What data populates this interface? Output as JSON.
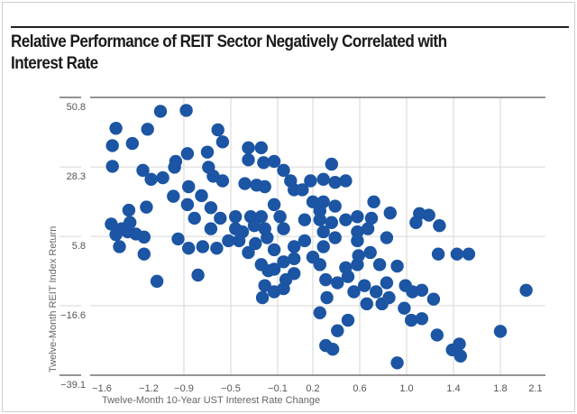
{
  "chart_data": {
    "type": "scatter",
    "title": "Relative Performance of REIT Sector Negatively Correlated with Interest Rate",
    "xlabel": "Twelve-Month 10-Year UST Interest Rate Change",
    "ylabel": "Twelve-Month REIT Index Return",
    "xticks": [
      -1.6,
      -1.2,
      -0.9,
      -0.5,
      -0.1,
      0.2,
      0.6,
      1.0,
      1.4,
      1.8,
      2.1
    ],
    "xtick_labels": [
      "−1.6",
      "−1.2",
      "−0.9",
      "−0.5",
      "−0.1",
      "0.2",
      "0.6",
      "1.0",
      "1.4",
      "1.8",
      "2.1"
    ],
    "yticks": [
      50.8,
      28.3,
      5.8,
      -16.6,
      -39.1
    ],
    "ytick_labels": [
      "50.8",
      "28.3",
      "5.8",
      "−16.6",
      "−39.1"
    ],
    "xlim": [
      -1.8,
      2.25
    ],
    "ylim": [
      -39.1,
      50.8
    ],
    "grid": true,
    "marker_color": "#1b55a3",
    "points": [
      [
        -1.1,
        46.3
      ],
      [
        -0.88,
        46.6
      ],
      [
        -1.48,
        40.8
      ],
      [
        -1.21,
        40.5
      ],
      [
        -1.51,
        35.2
      ],
      [
        -1.34,
        35.9
      ],
      [
        -1.51,
        28.5
      ],
      [
        -1.25,
        27.2
      ],
      [
        -1.18,
        24.3
      ],
      [
        -1.08,
        24.8
      ],
      [
        -0.98,
        28.2
      ],
      [
        -0.97,
        30.1
      ],
      [
        -0.87,
        32.6
      ],
      [
        -0.86,
        21.9
      ],
      [
        -0.99,
        18.8
      ],
      [
        -0.87,
        16.1
      ],
      [
        -0.75,
        19.0
      ],
      [
        -0.7,
        33.1
      ],
      [
        -0.69,
        28.2
      ],
      [
        -0.65,
        25.3
      ],
      [
        -0.57,
        23.8
      ],
      [
        -0.61,
        40.3
      ],
      [
        -0.57,
        36.4
      ],
      [
        -1.37,
        14.3
      ],
      [
        -1.22,
        15.3
      ],
      [
        -1.52,
        9.8
      ],
      [
        -1.43,
        8.3
      ],
      [
        -1.36,
        10.3
      ],
      [
        -1.48,
        6.4
      ],
      [
        -1.38,
        7.3
      ],
      [
        -1.31,
        6.6
      ],
      [
        -1.24,
        5.6
      ],
      [
        -1.45,
        2.5
      ],
      [
        -1.24,
        0.1
      ],
      [
        -1.13,
        -8.7
      ],
      [
        -0.95,
        5.0
      ],
      [
        -0.86,
        2.0
      ],
      [
        -0.78,
        -6.7
      ],
      [
        -0.81,
        11.7
      ],
      [
        -0.67,
        15.1
      ],
      [
        -0.67,
        8.3
      ],
      [
        -0.74,
        2.5
      ],
      [
        -0.62,
        2.0
      ],
      [
        -0.59,
        11.7
      ],
      [
        -0.35,
        34.5
      ],
      [
        -0.24,
        34.5
      ],
      [
        -0.35,
        30.6
      ],
      [
        -0.22,
        29.7
      ],
      [
        -0.13,
        30.1
      ],
      [
        -0.05,
        27.2
      ],
      [
        0.01,
        23.8
      ],
      [
        0.04,
        20.9
      ],
      [
        0.11,
        20.9
      ],
      [
        0.18,
        23.8
      ],
      [
        0.29,
        24.3
      ],
      [
        0.36,
        29.2
      ],
      [
        0.39,
        23.3
      ],
      [
        0.48,
        23.8
      ],
      [
        -0.38,
        22.9
      ],
      [
        -0.28,
        22.4
      ],
      [
        -0.21,
        21.9
      ],
      [
        -0.13,
        16.1
      ],
      [
        -0.46,
        12.2
      ],
      [
        -0.33,
        12.2
      ],
      [
        -0.24,
        12.2
      ],
      [
        -0.46,
        8.3
      ],
      [
        -0.4,
        7.3
      ],
      [
        -0.3,
        9.3
      ],
      [
        -0.21,
        8.3
      ],
      [
        -0.43,
        4.4
      ],
      [
        -0.35,
        0.6
      ],
      [
        -0.29,
        3.5
      ],
      [
        -0.19,
        5.4
      ],
      [
        -0.08,
        12.2
      ],
      [
        -0.05,
        8.3
      ],
      [
        -0.13,
        1.5
      ],
      [
        -0.24,
        -3.3
      ],
      [
        -0.13,
        -4.8
      ],
      [
        -0.05,
        -2.4
      ],
      [
        0.04,
        -6.2
      ],
      [
        -0.03,
        -8.2
      ],
      [
        -0.21,
        -10.1
      ],
      [
        -0.23,
        -14.0
      ],
      [
        -0.13,
        -12.1
      ],
      [
        -0.05,
        -11.1
      ],
      [
        0.04,
        2.5
      ],
      [
        0.13,
        4.4
      ],
      [
        0.2,
        17.0
      ],
      [
        0.13,
        11.2
      ],
      [
        0.29,
        17.0
      ],
      [
        0.39,
        15.6
      ],
      [
        0.26,
        11.2
      ],
      [
        0.36,
        10.3
      ],
      [
        0.29,
        7.3
      ],
      [
        0.39,
        5.4
      ],
      [
        0.29,
        2.5
      ],
      [
        0.2,
        -0.9
      ],
      [
        0.26,
        -3.3
      ],
      [
        0.48,
        11.2
      ],
      [
        0.58,
        12.2
      ],
      [
        0.72,
        17.0
      ],
      [
        0.7,
        11.7
      ],
      [
        0.86,
        13.4
      ],
      [
        0.58,
        7.3
      ],
      [
        0.67,
        8.3
      ],
      [
        0.58,
        4.4
      ],
      [
        0.83,
        5.4
      ],
      [
        0.69,
        0.6
      ],
      [
        0.59,
        -0.4
      ],
      [
        0.48,
        -4.3
      ],
      [
        0.58,
        -3.3
      ],
      [
        0.77,
        -3.3
      ],
      [
        0.92,
        -3.8
      ],
      [
        0.31,
        -8.2
      ],
      [
        0.41,
        -9.2
      ],
      [
        0.5,
        -7.2
      ],
      [
        0.32,
        -14.0
      ],
      [
        0.55,
        -12.1
      ],
      [
        0.64,
        -10.1
      ],
      [
        0.66,
        -16.0
      ],
      [
        0.74,
        -12.1
      ],
      [
        0.79,
        -16.0
      ],
      [
        0.85,
        -14.0
      ],
      [
        0.83,
        -9.2
      ],
      [
        0.99,
        -10.1
      ],
      [
        1.05,
        -12.1
      ],
      [
        1.13,
        -11.6
      ],
      [
        1.23,
        -14.5
      ],
      [
        0.98,
        -17.4
      ],
      [
        1.04,
        -21.3
      ],
      [
        1.13,
        -20.8
      ],
      [
        0.26,
        -18.9
      ],
      [
        0.5,
        -21.3
      ],
      [
        0.41,
        -24.7
      ],
      [
        0.31,
        -29.5
      ],
      [
        0.37,
        -30.7
      ],
      [
        1.26,
        -26.1
      ],
      [
        0.92,
        -35.1
      ],
      [
        1.39,
        -30.9
      ],
      [
        1.45,
        -29.0
      ],
      [
        1.46,
        -32.9
      ],
      [
        1.8,
        -24.9
      ],
      [
        2.02,
        -11.6
      ],
      [
        1.08,
        10.3
      ],
      [
        1.19,
        12.7
      ],
      [
        1.11,
        13.2
      ],
      [
        1.28,
        9.3
      ],
      [
        1.27,
        0.1
      ],
      [
        1.43,
        0.1
      ],
      [
        1.53,
        0.1
      ],
      [
        -0.18,
        -5.3
      ],
      [
        0.04,
        -1.4
      ],
      [
        -0.52,
        4.4
      ],
      [
        0.26,
        14.1
      ]
    ]
  }
}
